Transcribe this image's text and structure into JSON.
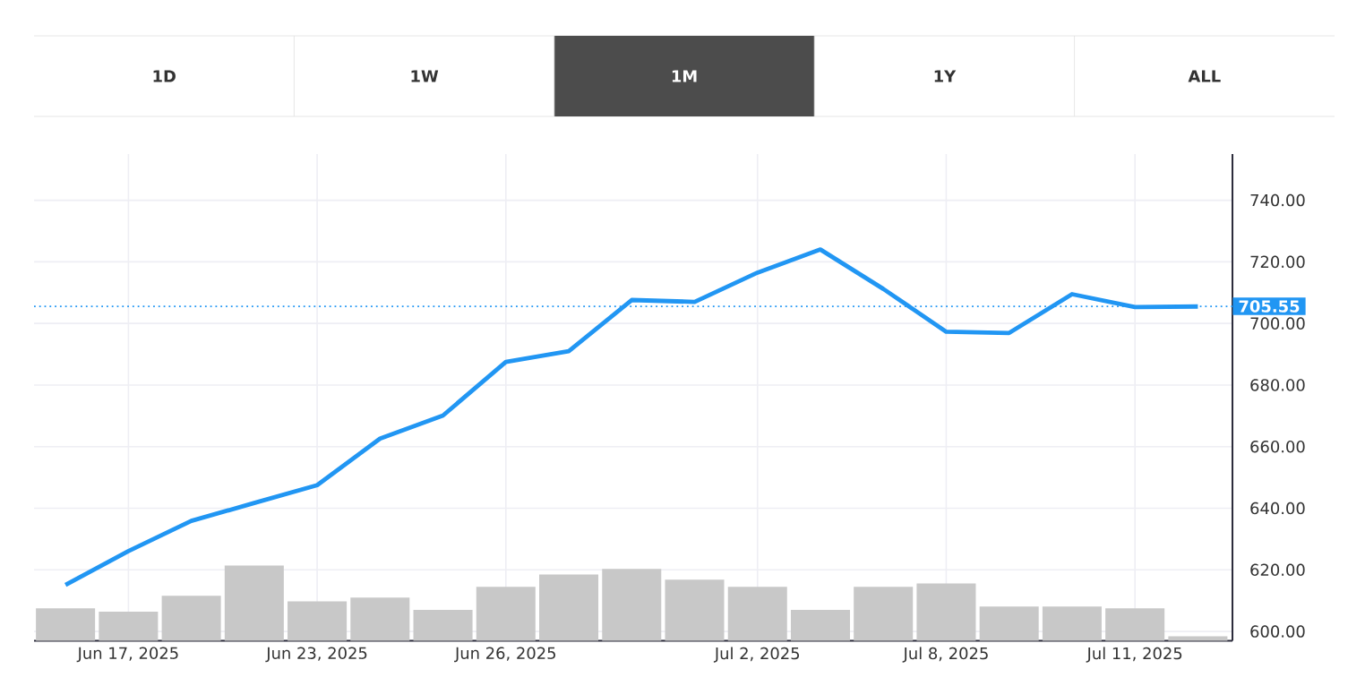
{
  "chart_data": {
    "type": "line",
    "annotations": [
      "1D",
      "1W",
      "1M",
      "1Y",
      "ALL"
    ],
    "categories": [
      null,
      "Jun 17, 2025",
      null,
      null,
      "Jun 23, 2025",
      null,
      null,
      "Jun 26, 2025",
      null,
      null,
      null,
      "Jul 2, 2025",
      null,
      null,
      "Jul 8, 2025",
      null,
      null,
      "Jul 11, 2025",
      null
    ],
    "series": [
      {
        "type": "bar",
        "color": "#c8c8c8",
        "values": [
          607.5,
          606.4,
          611.6,
          621.4,
          609.8,
          611.0,
          607.0,
          614.5,
          618.5,
          620.3,
          616.8,
          614.5,
          607.0,
          614.5,
          615.6,
          608.1,
          608.1,
          607.5,
          598.4
        ]
      },
      {
        "color": "#2196f3",
        "values": [
          615.1,
          626.1,
          635.9,
          641.7,
          647.5,
          662.6,
          670.1,
          687.5,
          691.0,
          707.6,
          707.0,
          716.5,
          724.0,
          711.2,
          697.3,
          696.9,
          709.5,
          705.3,
          705.5
        ]
      }
    ],
    "ylim": [
      597,
      755
    ],
    "yticks": [
      {
        "value": 600,
        "label": "600.00"
      },
      {
        "value": 620,
        "label": "620.00"
      },
      {
        "value": 640,
        "label": "640.00"
      },
      {
        "value": 660,
        "label": "660.00"
      },
      {
        "value": 680,
        "label": "680.00"
      },
      {
        "value": 700,
        "label": "700.00"
      },
      {
        "value": 720,
        "label": "720.00"
      },
      {
        "value": 740,
        "label": "740.00"
      }
    ],
    "ref_lines": [
      {
        "axis": "y",
        "value": 705.55,
        "label": "705.55",
        "color": "#2196f3",
        "line_style": "dotted"
      }
    ],
    "grid": true,
    "line_style": "solid"
  }
}
